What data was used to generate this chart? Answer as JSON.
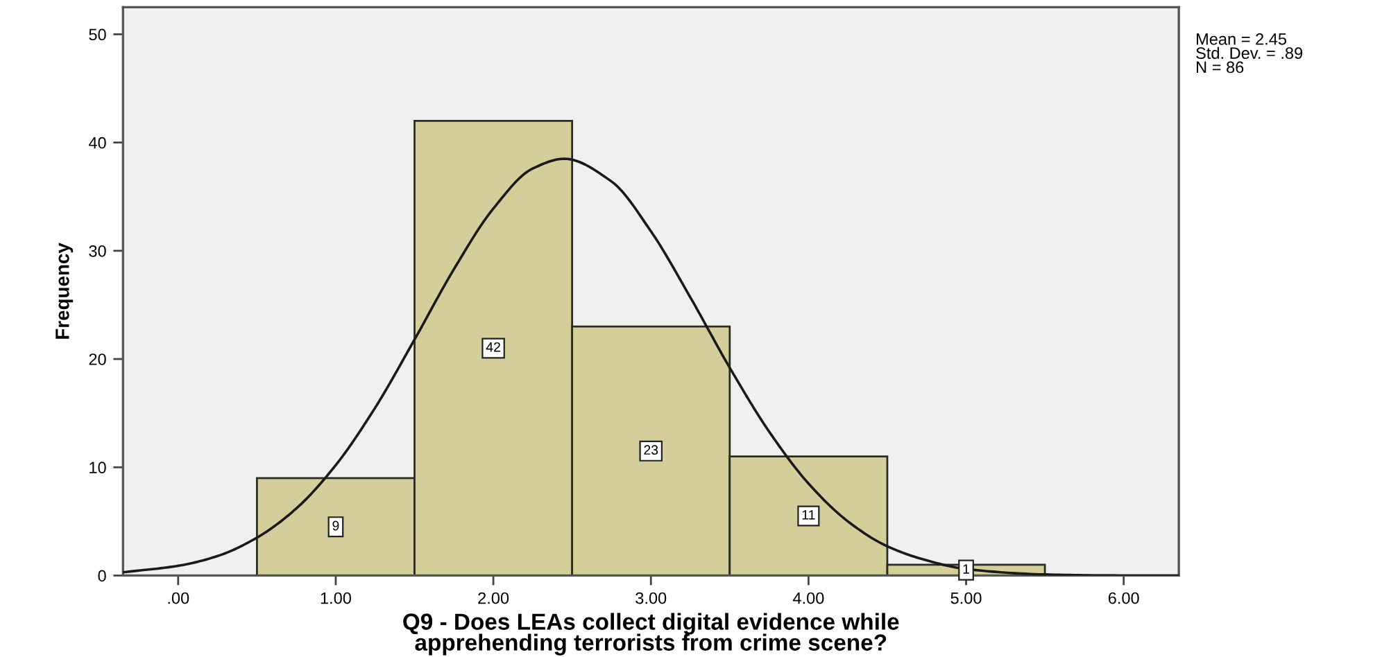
{
  "chart_data": {
    "type": "histogram",
    "xlabel": "Q9 - Does LEAs collect digital evidence while\napprehending terrorists from crime scene?",
    "ylabel": "Frequency",
    "annotations": [
      "Mean = 2.45\nStd. Dev. = .89\nN = 86"
    ],
    "bins": [
      0.5,
      1.5,
      2.5,
      3.5,
      4.5,
      5.5
    ],
    "series": [
      {
        "color": "#d4cf9a",
        "values": [
          9,
          42,
          23,
          11,
          1
        ],
        "value_labels": [
          "9",
          "42",
          "23",
          "11",
          "1"
        ]
      },
      {
        "type": "line",
        "color": "#1a1a1a",
        "x": [
          -0.35,
          0,
          0.25,
          0.5,
          0.75,
          1.0,
          1.25,
          1.5,
          1.75,
          2.0,
          2.25,
          2.45,
          2.75,
          3.0,
          3.25,
          3.5,
          3.75,
          4.0,
          4.25,
          4.5,
          4.75,
          5.0,
          5.5,
          6.0,
          6.35
        ],
        "values": [
          0.3,
          0.9,
          1.8,
          3.5,
          6.2,
          10.2,
          15.5,
          21.8,
          28.3,
          33.9,
          37.6,
          38.5,
          36.4,
          31.8,
          25.7,
          19.2,
          13.3,
          8.5,
          5.0,
          2.7,
          1.4,
          0.6,
          0.1,
          0.0,
          0.0
        ]
      }
    ],
    "xlim": [
      -0.35,
      6.35
    ],
    "xticks": [
      {
        "value": 0,
        "label": ".00"
      },
      {
        "value": 1,
        "label": "1.00"
      },
      {
        "value": 2,
        "label": "2.00"
      },
      {
        "value": 3,
        "label": "3.00"
      },
      {
        "value": 4,
        "label": "4.00"
      },
      {
        "value": 5,
        "label": "5.00"
      },
      {
        "value": 6,
        "label": "6.00"
      }
    ],
    "ylim": [
      0,
      52.5
    ],
    "yticks": [
      0,
      10,
      20,
      30,
      40,
      50
    ]
  }
}
